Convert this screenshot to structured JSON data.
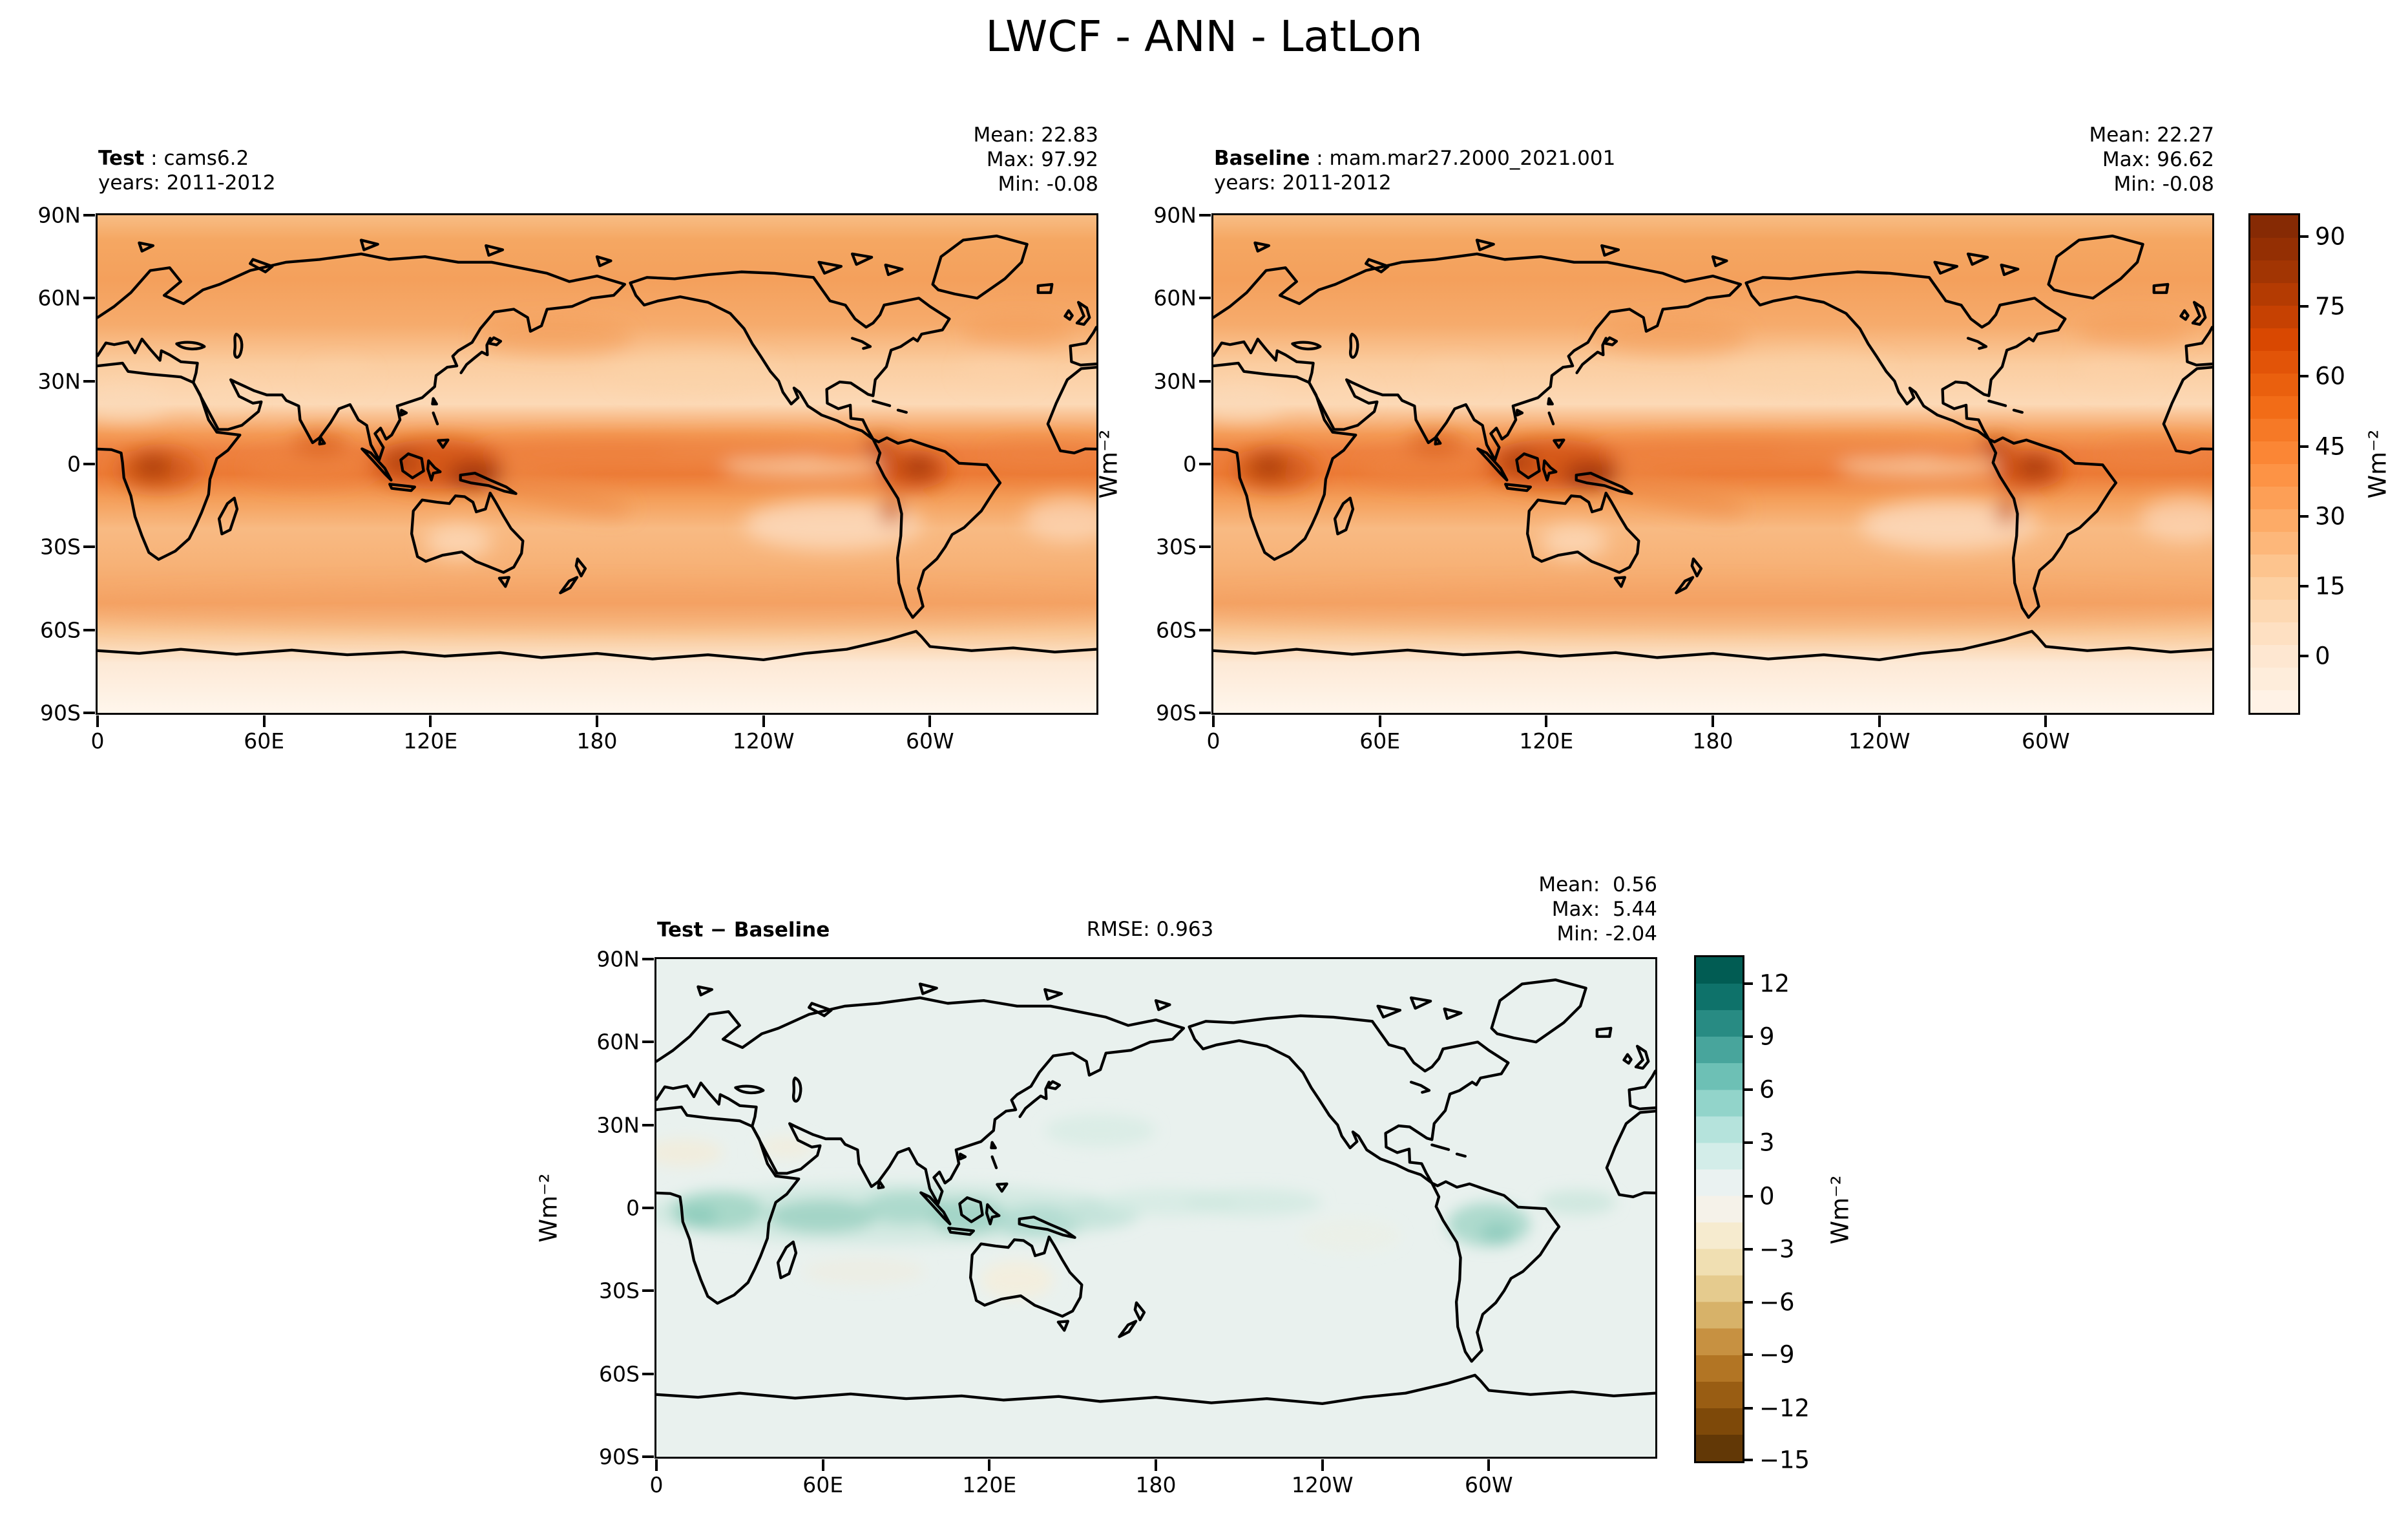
{
  "title": "LWCF - ANN - LatLon",
  "panels": {
    "test": {
      "label": "Test",
      "value": " : cams6.2",
      "years": "years: 2011-2012",
      "mean": "Mean: 22.83",
      "max": "Max: 97.92",
      "min": "Min: -0.08"
    },
    "baseline": {
      "label": "Baseline",
      "value": " : mam.mar27.2000_2021.001",
      "years": "years: 2011-2012",
      "mean": "Mean: 22.27",
      "max": "Max: 96.62",
      "min": "Min: -0.08"
    },
    "diff": {
      "label": "Test − Baseline",
      "rmse": "RMSE: 0.963",
      "mean": "Mean:  0.56",
      "max": "Max:  5.44",
      "min": "Min: -2.04"
    }
  },
  "axes": {
    "lat_ticks": [
      "90N",
      "60N",
      "30N",
      "0",
      "30S",
      "60S",
      "90S"
    ],
    "lon_ticks": [
      "0",
      "60E",
      "120E",
      "180",
      "120W",
      "60W"
    ]
  },
  "colorbars": {
    "oranges": {
      "unit": "Wm⁻²",
      "colormap": "Oranges",
      "ticks": [
        "90",
        "75",
        "60",
        "45",
        "30",
        "15",
        "0"
      ],
      "tick_pos_pct": [
        4.3,
        18.35,
        32.4,
        46.45,
        60.5,
        74.55,
        88.6
      ],
      "steps": 22,
      "range": [
        0,
        1
      ],
      "stops": [
        [
          0,
          "#fff5eb"
        ],
        [
          0.125,
          "#fee6ce"
        ],
        [
          0.25,
          "#fdd0a2"
        ],
        [
          0.375,
          "#fdae6b"
        ],
        [
          0.5,
          "#fd8d3c"
        ],
        [
          0.625,
          "#f16913"
        ],
        [
          0.75,
          "#d94801"
        ],
        [
          0.875,
          "#a63603"
        ],
        [
          1,
          "#7f2704"
        ]
      ]
    },
    "diff": {
      "unit": "Wm⁻²",
      "colormap": "BrBG",
      "ticks": [
        "12",
        "9",
        "6",
        "3",
        "0",
        "−3",
        "−6",
        "−9",
        "−12",
        "−15"
      ],
      "tick_pos_pct": [
        5.3,
        15.8,
        26.3,
        36.8,
        47.4,
        57.9,
        68.4,
        78.9,
        89.5,
        99.8
      ],
      "steps": 19,
      "range": [
        0,
        0.95
      ],
      "stops": [
        [
          0,
          "#543005"
        ],
        [
          0.1,
          "#8c510a"
        ],
        [
          0.2,
          "#bf812d"
        ],
        [
          0.3,
          "#dfc27d"
        ],
        [
          0.4,
          "#f6e8c3"
        ],
        [
          0.5,
          "#f5f5f5"
        ],
        [
          0.6,
          "#c7eae5"
        ],
        [
          0.7,
          "#80cdc1"
        ],
        [
          0.8,
          "#35978f"
        ],
        [
          0.9,
          "#01665e"
        ],
        [
          1,
          "#003c30"
        ]
      ]
    }
  },
  "chart_data": [
    {
      "type": "heatmap",
      "panel": "test",
      "variable": "LWCF",
      "season": "ANN",
      "projection": "LatLon",
      "dataset": "cams6.2",
      "years": "2011-2012",
      "units": "Wm⁻²",
      "stats": {
        "mean": 22.83,
        "max": 97.92,
        "min": -0.08
      },
      "lat_range": [
        -90,
        90
      ],
      "lon_range": [
        0,
        360
      ],
      "lat_ticks": [
        "90N",
        "60N",
        "30N",
        "0",
        "30S",
        "60S",
        "90S"
      ],
      "lon_ticks": [
        "0",
        "60E",
        "120E",
        "180",
        "120W",
        "60W"
      ],
      "colormap": "Oranges",
      "colorbar_ticks": [
        90,
        75,
        60,
        45,
        30,
        15,
        0
      ]
    },
    {
      "type": "heatmap",
      "panel": "baseline",
      "variable": "LWCF",
      "season": "ANN",
      "projection": "LatLon",
      "dataset": "mam.mar27.2000_2021.001",
      "years": "2011-2012",
      "units": "Wm⁻²",
      "stats": {
        "mean": 22.27,
        "max": 96.62,
        "min": -0.08
      },
      "lat_range": [
        -90,
        90
      ],
      "lon_range": [
        0,
        360
      ],
      "lat_ticks": [
        "90N",
        "60N",
        "30N",
        "0",
        "30S",
        "60S",
        "90S"
      ],
      "lon_ticks": [
        "0",
        "60E",
        "120E",
        "180",
        "120W",
        "60W"
      ],
      "colormap": "Oranges",
      "colorbar_ticks": [
        90,
        75,
        60,
        45,
        30,
        15,
        0
      ]
    },
    {
      "type": "heatmap",
      "panel": "difference",
      "title": "Test − Baseline",
      "rmse": 0.963,
      "units": "Wm⁻²",
      "stats": {
        "mean": 0.56,
        "max": 5.44,
        "min": -2.04
      },
      "lat_range": [
        -90,
        90
      ],
      "lon_range": [
        0,
        360
      ],
      "lat_ticks": [
        "90N",
        "60N",
        "30N",
        "0",
        "30S",
        "60S",
        "90S"
      ],
      "lon_ticks": [
        "0",
        "60E",
        "120E",
        "180",
        "120W",
        "60W"
      ],
      "colormap": "BrBG",
      "colorbar_ticks": [
        12,
        9,
        6,
        3,
        0,
        -3,
        -6,
        -9,
        -12,
        -15
      ]
    }
  ]
}
